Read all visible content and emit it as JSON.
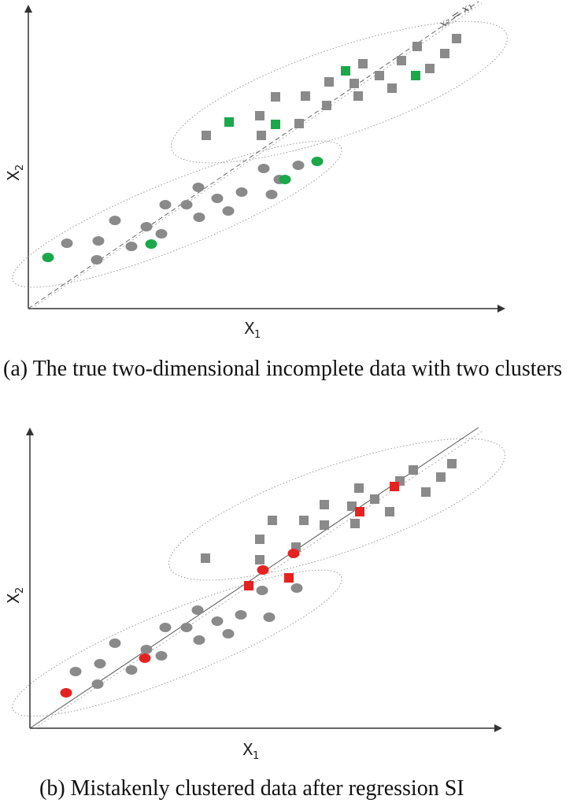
{
  "colors": {
    "gray_marker": "#8a8a8a",
    "green_marker": "#1aa84a",
    "red_marker": "#e52222",
    "axis": "#333333",
    "ellipse": "#9a9a9a"
  },
  "panel_a": {
    "x_axis_label": "X",
    "x_axis_sub": "1",
    "y_axis_label": "X",
    "y_axis_sub": "2",
    "line_label": "x₂ = x₁",
    "caption": "(a) The true two-dimensional incomplete data with two clusters",
    "squares": {
      "gray": [
        [
          262,
          172
        ],
        [
          332,
          172
        ],
        [
          330,
          147
        ],
        [
          350,
          123
        ],
        [
          380,
          157
        ],
        [
          388,
          122
        ],
        [
          415,
          134
        ],
        [
          418,
          104
        ],
        [
          450,
          106
        ],
        [
          455,
          122
        ],
        [
          461,
          81
        ],
        [
          482,
          96
        ],
        [
          498,
          112
        ],
        [
          510,
          77
        ],
        [
          530,
          59
        ],
        [
          546,
          87
        ],
        [
          565,
          68
        ],
        [
          580,
          49
        ]
      ],
      "green": [
        [
          291,
          155
        ],
        [
          350,
          158
        ],
        [
          439,
          90
        ],
        [
          528,
          96
        ]
      ]
    },
    "circles": {
      "gray": [
        [
          85,
          309
        ],
        [
          123,
          330
        ],
        [
          125,
          306
        ],
        [
          146,
          280
        ],
        [
          167,
          313
        ],
        [
          186,
          288
        ],
        [
          205,
          297
        ],
        [
          210,
          260
        ],
        [
          237,
          260
        ],
        [
          252,
          238
        ],
        [
          253,
          276
        ],
        [
          276,
          252
        ],
        [
          290,
          268
        ],
        [
          307,
          244
        ],
        [
          335,
          214
        ],
        [
          345,
          247
        ],
        [
          355,
          228
        ],
        [
          379,
          210
        ]
      ],
      "green": [
        [
          61,
          327
        ],
        [
          192,
          310
        ],
        [
          362,
          228
        ],
        [
          403,
          205
        ]
      ]
    }
  },
  "panel_b": {
    "x_axis_label": "X",
    "x_axis_sub": "1",
    "y_axis_label": "X",
    "y_axis_sub": "2",
    "caption": "(b) Mistakenly clustered data after regression SI",
    "squares": {
      "gray": [
        [
          261,
          174
        ],
        [
          330,
          150
        ],
        [
          330,
          176
        ],
        [
          346,
          126
        ],
        [
          376,
          160
        ],
        [
          386,
          126
        ],
        [
          412,
          106
        ],
        [
          412,
          132
        ],
        [
          447,
          108
        ],
        [
          451,
          130
        ],
        [
          456,
          85
        ],
        [
          476,
          99
        ],
        [
          495,
          115
        ],
        [
          508,
          76
        ],
        [
          525,
          62
        ],
        [
          541,
          90
        ],
        [
          560,
          71
        ],
        [
          574,
          54
        ]
      ],
      "red": [
        [
          316,
          209
        ],
        [
          367,
          199
        ],
        [
          457,
          115
        ],
        [
          501,
          83
        ]
      ]
    },
    "circles": {
      "gray": [
        [
          96,
          318
        ],
        [
          124,
          334
        ],
        [
          127,
          308
        ],
        [
          146,
          282
        ],
        [
          167,
          316
        ],
        [
          186,
          290
        ],
        [
          205,
          298
        ],
        [
          210,
          262
        ],
        [
          237,
          262
        ],
        [
          251,
          240
        ],
        [
          253,
          278
        ],
        [
          276,
          254
        ],
        [
          290,
          270
        ],
        [
          306,
          246
        ],
        [
          333,
          215
        ],
        [
          342,
          249
        ],
        [
          377,
          212
        ]
      ],
      "red": [
        [
          84,
          345
        ],
        [
          184,
          301
        ],
        [
          334,
          189
        ],
        [
          373,
          168
        ]
      ]
    }
  }
}
